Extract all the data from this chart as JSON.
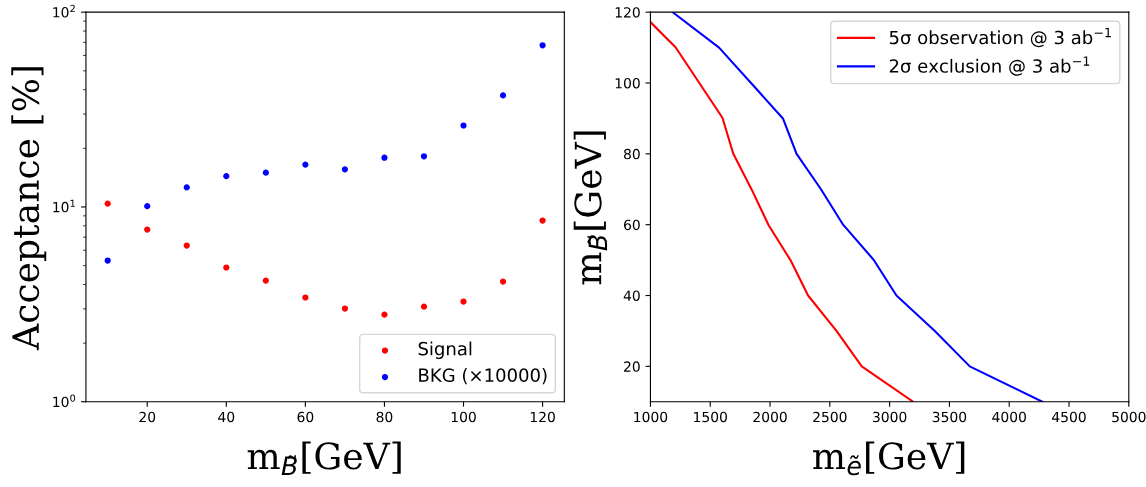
{
  "chart_data": [
    {
      "type": "scatter",
      "xlabel": "m$_{B̃}$[GeV]",
      "ylabel": "Acceptance [%]",
      "x": [
        10,
        20,
        30,
        40,
        50,
        60,
        70,
        80,
        90,
        100,
        110,
        120
      ],
      "series": [
        {
          "name": "Signal",
          "color": "#ff0000",
          "values": [
            10.4,
            7.66,
            6.34,
            4.89,
            4.19,
            3.43,
            3.01,
            2.8,
            3.08,
            3.27,
            4.14,
            8.52
          ]
        },
        {
          "name": "BKG (×10000)",
          "color": "#0000ff",
          "values": [
            5.31,
            10.1,
            12.6,
            14.4,
            15.0,
            16.5,
            15.6,
            17.9,
            18.2,
            26.2,
            37.4,
            67.6
          ]
        }
      ],
      "log": "y",
      "xlim": [
        4.5,
        125.5
      ],
      "xticks": [
        20,
        40,
        60,
        80,
        100,
        120
      ],
      "ylim": [
        1,
        100
      ],
      "yticks": [
        {
          "value": 1,
          "label": "10$^{0}$"
        },
        {
          "value": 10,
          "label": "10$^{1}$"
        },
        {
          "value": 100,
          "label": "10$^{2}$"
        }
      ],
      "marker": "circle",
      "legend": "lower right",
      "grid": false
    },
    {
      "type": "line",
      "xlabel": "m$_{ẽ}$[GeV]",
      "ylabel": "m$_{B̃}$[GeV]",
      "series": [
        {
          "name": "5σ observation @ 3 ab$^{−1}$",
          "color": "#ff0000",
          "x": [
            1000,
            1210,
            1602,
            1693,
            1844,
            1986,
            2176,
            2318,
            2554,
            2767,
            3193
          ],
          "values": [
            117.2,
            110.1,
            90.2,
            80,
            70.1,
            60,
            49.7,
            40,
            30.1,
            20,
            10.1
          ]
        },
        {
          "name": "2σ exclusion @ 3 ab$^{−1}$",
          "color": "#0000ff",
          "x": [
            1185,
            1574,
            2108,
            2222,
            2426,
            2611,
            2866,
            3057,
            3378,
            3670,
            4278
          ],
          "values": [
            120,
            110,
            90,
            80,
            70,
            60,
            50.1,
            40,
            30,
            20,
            10
          ]
        }
      ],
      "xlim": [
        1000,
        5000
      ],
      "xticks": [
        1000,
        1500,
        2000,
        2500,
        3000,
        3500,
        4000,
        4500,
        5000
      ],
      "ylim": [
        10,
        120
      ],
      "yticks": [
        20,
        40,
        60,
        80,
        100,
        120
      ],
      "legend": "upper right",
      "grid": false,
      "line_style": "solid",
      "marker": "none"
    }
  ]
}
